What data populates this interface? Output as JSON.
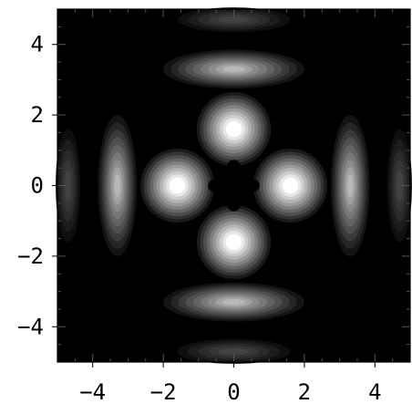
{
  "chart_data": {
    "type": "heatmap",
    "plot_style": "filled contour",
    "colormap": "grayscale (black = low, white = high)",
    "title": "",
    "xlabel": "",
    "ylabel": "",
    "xlim": [
      -5,
      5
    ],
    "ylim": [
      -5,
      5
    ],
    "xticks": [
      -4,
      -2,
      0,
      2,
      4
    ],
    "yticks": [
      -4,
      -2,
      0,
      2,
      4
    ],
    "xtick_labels": [
      "−4",
      "−2",
      "0",
      "2",
      "4"
    ],
    "ytick_labels": [
      "−4",
      "−2",
      "0",
      "2",
      "4"
    ],
    "grid": false,
    "legend": "none",
    "features": [
      {
        "shape": "bright lobe",
        "x": 0,
        "y": 1.6,
        "level": "max"
      },
      {
        "shape": "bright lobe",
        "x": 0,
        "y": -1.6,
        "level": "max"
      },
      {
        "shape": "bright lobe",
        "x": 1.6,
        "y": 0,
        "level": "max"
      },
      {
        "shape": "bright lobe",
        "x": -1.6,
        "y": 0,
        "level": "max"
      },
      {
        "shape": "arc",
        "x": 0,
        "y": 3.3,
        "level": "mid"
      },
      {
        "shape": "arc",
        "x": 0,
        "y": -3.3,
        "level": "mid"
      },
      {
        "shape": "arc",
        "x": 3.3,
        "y": 0,
        "level": "mid"
      },
      {
        "shape": "arc",
        "x": -3.3,
        "y": 0,
        "level": "mid"
      },
      {
        "shape": "faint arc",
        "x": 0,
        "y": 4.7,
        "level": "low"
      },
      {
        "shape": "faint arc",
        "x": 0,
        "y": -4.7,
        "level": "low"
      },
      {
        "shape": "faint arc",
        "x": 4.7,
        "y": 0,
        "level": "low"
      },
      {
        "shape": "faint arc",
        "x": -4.7,
        "y": 0,
        "level": "low"
      }
    ]
  }
}
